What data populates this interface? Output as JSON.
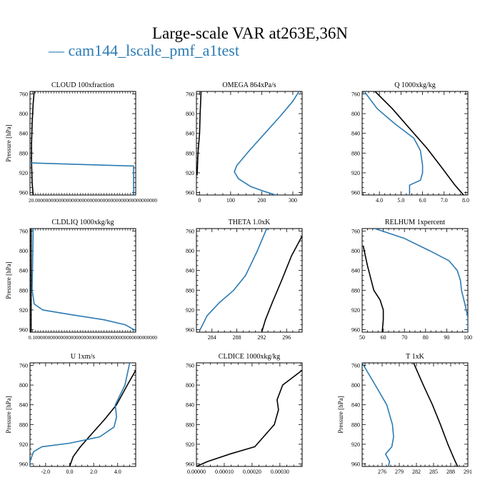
{
  "title": "Large-scale VAR at263E,36N",
  "legend": {
    "label": "— cam144_lscale_pmf_a1test",
    "color": "#2b7bb3"
  },
  "colors": {
    "black_series": "#000000",
    "blue_series": "#2b7bb3"
  },
  "chart_data": [
    {
      "type": "line",
      "title": "CLOUD  100xfraction",
      "ylabel": "Pressure [hPa]",
      "yticks": [
        760,
        800,
        840,
        880,
        920,
        960
      ],
      "ylim": [
        965,
        755
      ],
      "xlim": [
        0,
        1
      ],
      "xtick_text": "20.00000000000000000000000000000000000000000000000",
      "series": [
        {
          "color": "black",
          "points": [
            [
              0.03,
              965
            ],
            [
              0.02,
              940
            ],
            [
              0.015,
              900
            ],
            [
              0.015,
              860
            ],
            [
              0.02,
              820
            ],
            [
              0.03,
              780
            ],
            [
              0.04,
              755
            ]
          ]
        },
        {
          "color": "blue",
          "points": [
            [
              0,
              900
            ],
            [
              0.95,
              906
            ],
            [
              0.98,
              906
            ],
            [
              0.98,
              965
            ]
          ]
        }
      ]
    },
    {
      "type": "line",
      "title": "OMEGA  864xPa/s",
      "ylabel": "",
      "yticks": [
        760,
        800,
        840,
        880,
        920,
        960
      ],
      "ylim": [
        965,
        755
      ],
      "xlim": [
        -10,
        330
      ],
      "xticks": [
        0,
        100,
        200,
        300
      ],
      "xticklabels": [
        "0",
        "100",
        "200",
        "300"
      ],
      "series": [
        {
          "color": "black",
          "points": [
            [
              -8,
              925
            ],
            [
              -5,
              880
            ],
            [
              0,
              840
            ],
            [
              2,
              800
            ],
            [
              5,
              755
            ]
          ]
        },
        {
          "color": "blue",
          "points": [
            [
              320,
              755
            ],
            [
              300,
              775
            ],
            [
              260,
              805
            ],
            [
              210,
              840
            ],
            [
              160,
              875
            ],
            [
              120,
              905
            ],
            [
              112,
              918
            ],
            [
              125,
              932
            ],
            [
              165,
              948
            ],
            [
              210,
              958
            ],
            [
              245,
              965
            ]
          ]
        }
      ]
    },
    {
      "type": "line",
      "title": "Q  1000xkg/kg",
      "ylabel": "",
      "yticks": [
        760,
        800,
        840,
        880,
        920,
        960
      ],
      "ylim": [
        965,
        755
      ],
      "xlim": [
        3.2,
        8.1
      ],
      "xticks": [
        4.0,
        5.0,
        6.0,
        7.0,
        8.0
      ],
      "xticklabels": [
        "4.0",
        "5.0",
        "6.0",
        "7.0",
        "8.0"
      ],
      "series": [
        {
          "color": "black",
          "points": [
            [
              3.8,
              755
            ],
            [
              4.6,
              790
            ],
            [
              5.4,
              830
            ],
            [
              6.2,
              870
            ],
            [
              6.9,
              910
            ],
            [
              7.5,
              945
            ],
            [
              7.9,
              965
            ]
          ]
        },
        {
          "color": "blue",
          "points": [
            [
              3.3,
              755
            ],
            [
              3.9,
              790
            ],
            [
              4.7,
              820
            ],
            [
              5.6,
              850
            ],
            [
              5.9,
              875
            ],
            [
              6.0,
              905
            ],
            [
              6.0,
              920
            ],
            [
              5.9,
              935
            ],
            [
              5.4,
              945
            ],
            [
              5.4,
              965
            ]
          ]
        }
      ]
    },
    {
      "type": "line",
      "title": "CLDLIQ  1000xkg/kg",
      "ylabel": "Pressure [hPa]",
      "yticks": [
        760,
        800,
        840,
        880,
        920,
        960
      ],
      "ylim": [
        965,
        755
      ],
      "xlim": [
        0,
        1
      ],
      "xtick_text": "0.1000000000000000000000000000000000000000000000000",
      "series": [
        {
          "color": "black",
          "points": [
            [
              0.01,
              755
            ],
            [
              0.01,
              965
            ]
          ]
        },
        {
          "color": "blue",
          "points": [
            [
              0.03,
              755
            ],
            [
              0.025,
              820
            ],
            [
              0.02,
              880
            ],
            [
              0.04,
              908
            ],
            [
              0.12,
              920
            ],
            [
              0.4,
              930
            ],
            [
              0.7,
              940
            ],
            [
              0.9,
              950
            ],
            [
              1.0,
              962
            ]
          ]
        }
      ]
    },
    {
      "type": "line",
      "title": "THETA  1.0xK",
      "ylabel": "",
      "yticks": [
        760,
        800,
        840,
        880,
        920,
        960
      ],
      "ylim": [
        965,
        755
      ],
      "xlim": [
        281.5,
        298.5
      ],
      "xticks": [
        284,
        288,
        292,
        296
      ],
      "xticklabels": [
        "284",
        "288",
        "292",
        "296"
      ],
      "series": [
        {
          "color": "black",
          "points": [
            [
              298.5,
              770
            ],
            [
              296.8,
              810
            ],
            [
              295.2,
              860
            ],
            [
              293.7,
              905
            ],
            [
              292.6,
              940
            ],
            [
              292.0,
              965
            ]
          ]
        },
        {
          "color": "blue",
          "points": [
            [
              292.8,
              755
            ],
            [
              291.3,
              800
            ],
            [
              289.4,
              850
            ],
            [
              287.5,
              880
            ],
            [
              285.2,
              905
            ],
            [
              283.2,
              932
            ],
            [
              282.5,
              950
            ],
            [
              282.0,
              962
            ]
          ]
        }
      ]
    },
    {
      "type": "line",
      "title": "RELHUM  1xpercent",
      "ylabel": "",
      "yticks": [
        760,
        800,
        840,
        880,
        920,
        960
      ],
      "ylim": [
        965,
        755
      ],
      "xlim": [
        50,
        100
      ],
      "xticks": [
        50,
        60,
        70,
        80,
        90,
        100
      ],
      "xticklabels": [
        "50",
        "60",
        "70",
        "80",
        "90",
        "100"
      ],
      "series": [
        {
          "color": "black",
          "points": [
            [
              50.5,
              790
            ],
            [
              52.5,
              830
            ],
            [
              55.5,
              880
            ],
            [
              58.5,
              900
            ],
            [
              60,
              920
            ],
            [
              60,
              940
            ],
            [
              59.5,
              965
            ]
          ]
        },
        {
          "color": "blue",
          "points": [
            [
              56,
              755
            ],
            [
              70,
              775
            ],
            [
              82,
              800
            ],
            [
              91,
              820
            ],
            [
              95,
              840
            ],
            [
              96.5,
              860
            ],
            [
              97,
              880
            ],
            [
              99,
              915
            ],
            [
              100,
              935
            ],
            [
              100,
              965
            ]
          ]
        }
      ]
    },
    {
      "type": "line",
      "title": "U  1xm/s",
      "ylabel": "Pressure [hPa]",
      "yticks": [
        760,
        800,
        840,
        880,
        920,
        960
      ],
      "ylim": [
        965,
        755
      ],
      "xlim": [
        -3.3,
        5.5
      ],
      "xticks": [
        -2.0,
        0.0,
        2.0,
        4.0
      ],
      "xticklabels": [
        "-2.0",
        "0.0",
        "2.0",
        "4.0"
      ],
      "series": [
        {
          "color": "black",
          "points": [
            [
              5.5,
              770
            ],
            [
              4.8,
              800
            ],
            [
              3.9,
              840
            ],
            [
              2.9,
              870
            ],
            [
              1.8,
              900
            ],
            [
              0.9,
              925
            ],
            [
              0.3,
              945
            ],
            [
              0.0,
              965
            ]
          ]
        },
        {
          "color": "blue",
          "points": [
            [
              5.0,
              755
            ],
            [
              4.6,
              800
            ],
            [
              3.8,
              840
            ],
            [
              3.9,
              865
            ],
            [
              3.7,
              885
            ],
            [
              2.5,
              905
            ],
            [
              0.0,
              918
            ],
            [
              -2.3,
              925
            ],
            [
              -3.0,
              935
            ],
            [
              -3.3,
              955
            ],
            [
              -3.3,
              965
            ]
          ]
        }
      ]
    },
    {
      "type": "line",
      "title": "CLDICE  1000xkg/kg",
      "ylabel": "",
      "yticks": [
        760,
        800,
        840,
        880,
        920,
        960
      ],
      "ylim": [
        965,
        755
      ],
      "xlim": [
        0,
        0.00038
      ],
      "xticks": [
        0,
        0.0001,
        0.0002,
        0.0003
      ],
      "xticklabels": [
        "0.00000",
        "0.00010",
        "0.00020",
        "0.00030"
      ],
      "series": [
        {
          "color": "black",
          "points": [
            [
              0.00038,
              770
            ],
            [
              0.00031,
              800
            ],
            [
              0.00029,
              830
            ],
            [
              0.000295,
              850
            ],
            [
              0.00028,
              880
            ],
            [
              0.00021,
              925
            ],
            [
              0.00012,
              940
            ],
            [
              4e-05,
              955
            ],
            [
              0.0,
              965
            ]
          ]
        }
      ]
    },
    {
      "type": "line",
      "title": "T  1xK",
      "ylabel": "Pressure [hPa]",
      "yticks": [
        760,
        800,
        840,
        880,
        920,
        960
      ],
      "ylim": [
        965,
        755
      ],
      "xlim": [
        272.5,
        291
      ],
      "xticks": [
        276,
        279,
        282,
        285,
        288,
        291
      ],
      "xticklabels": [
        "276",
        "279",
        "282",
        "285",
        "288",
        "291"
      ],
      "series": [
        {
          "color": "black",
          "points": [
            [
              281.5,
              755
            ],
            [
              283.2,
              800
            ],
            [
              284.8,
              840
            ],
            [
              286.2,
              880
            ],
            [
              287.5,
              920
            ],
            [
              288.6,
              950
            ],
            [
              289.2,
              965
            ]
          ]
        },
        {
          "color": "blue",
          "points": [
            [
              272.5,
              755
            ],
            [
              274.8,
              800
            ],
            [
              276.8,
              840
            ],
            [
              277.8,
              880
            ],
            [
              278.0,
              905
            ],
            [
              277.7,
              925
            ],
            [
              276.6,
              940
            ],
            [
              277.3,
              955
            ],
            [
              277.1,
              965
            ]
          ]
        }
      ]
    }
  ]
}
